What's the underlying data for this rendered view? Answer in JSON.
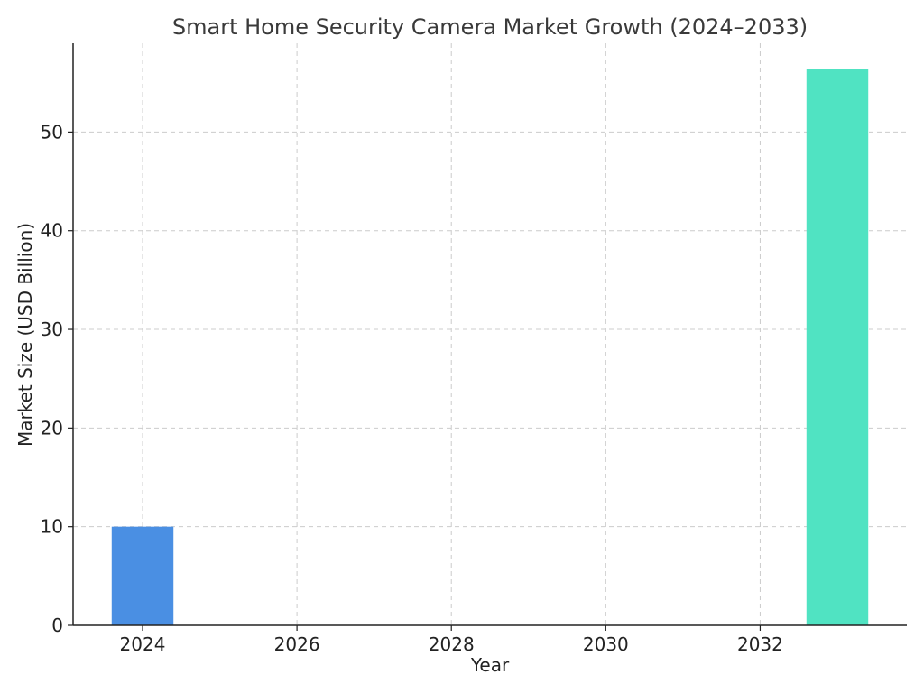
{
  "chart_data": {
    "type": "bar",
    "title": "Smart Home Security Camera Market Growth (2024–2033)",
    "xlabel": "Year",
    "ylabel": "Market Size (USD Billion)",
    "x": [
      2024,
      2033
    ],
    "values": [
      10,
      56.4
    ],
    "colors": [
      "#4a8fe3",
      "#50e3c2"
    ],
    "bar_width_years": 0.8,
    "xlim": [
      2023.1,
      2033.9
    ],
    "ylim": [
      0,
      59
    ],
    "xticks": [
      2024,
      2026,
      2028,
      2030,
      2032
    ],
    "yticks": [
      0,
      10,
      20,
      30,
      40,
      50
    ],
    "grid": true
  }
}
